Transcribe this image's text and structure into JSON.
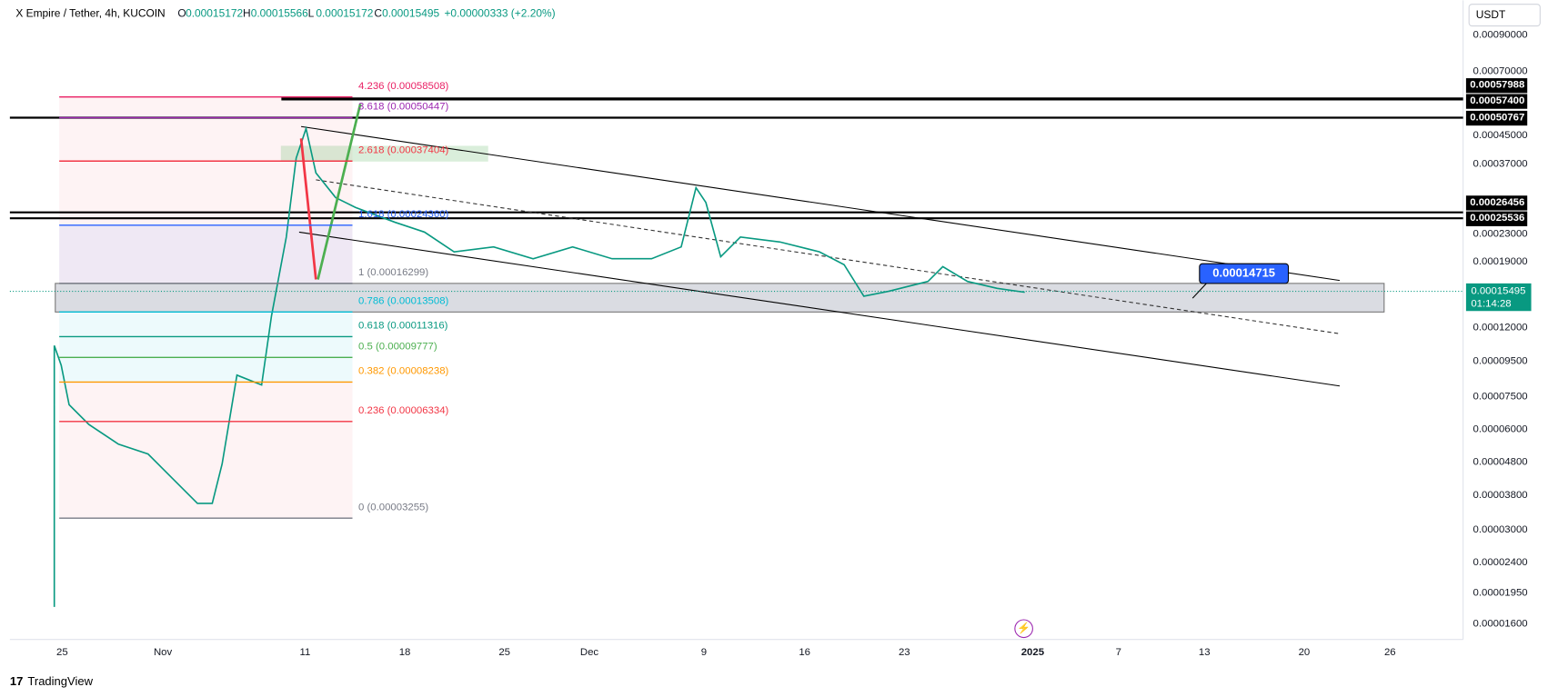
{
  "header": {
    "symbol": "X Empire / Tether, 4h, KUCOIN",
    "o": "O",
    "open": "0.00015172",
    "h": "H",
    "high": "0.00015566",
    "l": "L",
    "low": "0.00015172",
    "c": "C",
    "close": "0.00015495",
    "change": "+0.00000333 (+2.20%)"
  },
  "currency": "USDT",
  "price_axis": [
    "0.00090000",
    "0.00070000",
    "0.00045000",
    "0.00037000",
    "0.00023000",
    "0.00019000",
    "0.00012000",
    "0.00009500",
    "0.00007500",
    "0.00006000",
    "0.00004800",
    "0.00003800",
    "0.00003000",
    "0.00002400",
    "0.00001950",
    "0.00001600"
  ],
  "price_tags": [
    "0.00057988",
    "0.00057400",
    "0.00050767",
    "0.00026456",
    "0.00025536"
  ],
  "last_price": {
    "price": "0.00015495",
    "countdown": "01:14:28"
  },
  "date_axis": [
    "25",
    "Nov",
    "11",
    "18",
    "25",
    "Dec",
    "9",
    "16",
    "23",
    "2025",
    "7",
    "13",
    "20",
    "26"
  ],
  "fib_levels": [
    "4.236 (0.00058508)",
    "3.618 (0.00050447)",
    "2.618 (0.00037404)",
    "1.618 (0.00024360)",
    "1 (0.00016299)",
    "0.786 (0.00013508)",
    "0.618 (0.00011316)",
    "0.5 (0.00009777)",
    "0.382 (0.00008238)",
    "0.236 (0.00006334)",
    "0 (0.00003255)"
  ],
  "callout": "0.00014715",
  "brand": "TradingView"
}
